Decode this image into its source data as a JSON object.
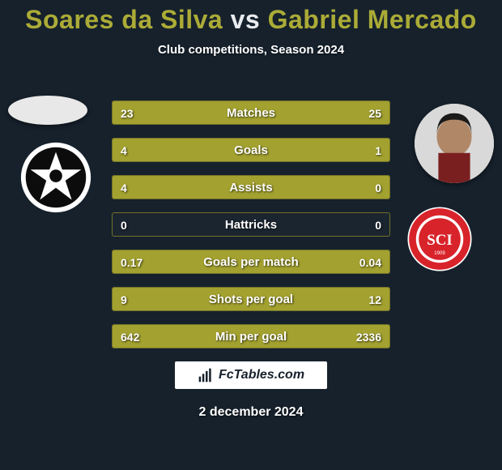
{
  "colors": {
    "background": "#16212c",
    "title_p1": "#abab37",
    "title_vs": "#e9ebef",
    "title_p2": "#abab37",
    "bar_fill": "#a3a12f",
    "bar_border": "#72722a",
    "text": "#ffffff"
  },
  "header": {
    "player1": "Soares da Silva",
    "vs": "vs",
    "player2": "Gabriel Mercado",
    "subtitle": "Club competitions, Season 2024"
  },
  "stats": [
    {
      "label": "Matches",
      "left_text": "23",
      "right_text": "25",
      "left_pct": 47.9,
      "right_pct": 52.1
    },
    {
      "label": "Goals",
      "left_text": "4",
      "right_text": "1",
      "left_pct": 80.0,
      "right_pct": 20.0
    },
    {
      "label": "Assists",
      "left_text": "4",
      "right_text": "0",
      "left_pct": 100.0,
      "right_pct": 0.0
    },
    {
      "label": "Hattricks",
      "left_text": "0",
      "right_text": "0",
      "left_pct": 0.0,
      "right_pct": 0.0
    },
    {
      "label": "Goals per match",
      "left_text": "0.17",
      "right_text": "0.04",
      "left_pct": 81.0,
      "right_pct": 19.0
    },
    {
      "label": "Shots per goal",
      "left_text": "9",
      "right_text": "12",
      "left_pct": 43.0,
      "right_pct": 57.0
    },
    {
      "label": "Min per goal",
      "left_text": "642",
      "right_text": "2336",
      "left_pct": 21.6,
      "right_pct": 78.4
    }
  ],
  "watermark": {
    "text": "FcTables.com"
  },
  "footer": {
    "date": "2 december 2024"
  },
  "clubs": {
    "left": {
      "name": "Botafogo",
      "primary": "#0c0c0c",
      "secondary": "#ffffff"
    },
    "right": {
      "name": "Internacional",
      "primary": "#d8232a",
      "secondary": "#ffffff"
    }
  }
}
